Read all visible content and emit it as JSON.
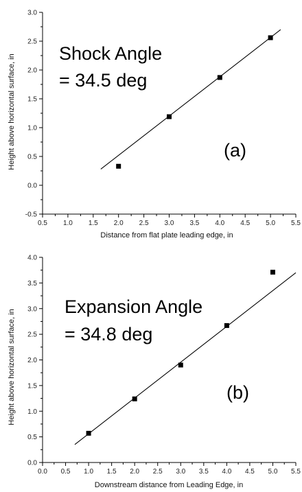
{
  "chart_data": [
    {
      "type": "scatter",
      "panel_label": "(a)",
      "annotation": [
        "Shock Angle",
        "= 34.5 deg"
      ],
      "xlabel": "Distance from flat plate leading edge, in",
      "ylabel": "Height above horizontal surface, in",
      "xlim": [
        0.5,
        5.5
      ],
      "ylim": [
        -0.5,
        3.0
      ],
      "xticks": [
        "0.5",
        "1.0",
        "1.5",
        "2.0",
        "2.5",
        "3.0",
        "3.5",
        "4.0",
        "4.5",
        "5.0",
        "5.5"
      ],
      "yticks": [
        "-0.5",
        "0.0",
        "0.5",
        "1.0",
        "1.5",
        "2.0",
        "2.5",
        "3.0"
      ],
      "points": [
        {
          "x": 2.0,
          "y": 0.33
        },
        {
          "x": 3.0,
          "y": 1.19
        },
        {
          "x": 4.0,
          "y": 1.87
        },
        {
          "x": 5.0,
          "y": 2.56
        }
      ],
      "fit_line": {
        "x": [
          1.65,
          5.2
        ],
        "y": [
          0.28,
          2.7
        ]
      }
    },
    {
      "type": "scatter",
      "panel_label": "(b)",
      "annotation": [
        "Expansion Angle",
        "= 34.8 deg"
      ],
      "xlabel": "Downstream distance from Leading Edge, in",
      "ylabel": "Height above horizontal surface, in",
      "xlim": [
        0.0,
        5.5
      ],
      "ylim": [
        0.0,
        4.0
      ],
      "xticks": [
        "0.0",
        "0.5",
        "1.0",
        "1.5",
        "2.0",
        "2.5",
        "3.0",
        "3.5",
        "4.0",
        "4.5",
        "5.0",
        "5.5"
      ],
      "yticks": [
        "0.0",
        "0.5",
        "1.0",
        "1.5",
        "2.0",
        "2.5",
        "3.0",
        "3.5",
        "4.0"
      ],
      "points": [
        {
          "x": 1.0,
          "y": 0.57
        },
        {
          "x": 2.0,
          "y": 1.24
        },
        {
          "x": 3.0,
          "y": 1.9
        },
        {
          "x": 4.0,
          "y": 2.67
        },
        {
          "x": 5.0,
          "y": 3.71
        }
      ],
      "fit_line": {
        "x": [
          0.7,
          5.5
        ],
        "y": [
          0.35,
          3.7
        ]
      }
    }
  ]
}
